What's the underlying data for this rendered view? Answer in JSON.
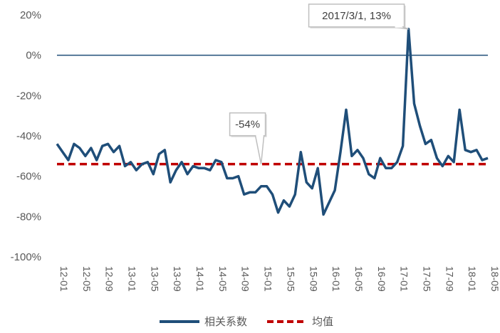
{
  "chart_data": {
    "type": "line",
    "y_ticks": [
      "20%",
      "0%",
      "-20%",
      "-40%",
      "-60%",
      "-80%",
      "-100%"
    ],
    "ylim": [
      -100,
      20
    ],
    "x_ticks": [
      "12-01",
      "12-05",
      "12-09",
      "13-01",
      "13-05",
      "13-09",
      "14-01",
      "14-05",
      "14-09",
      "15-01",
      "15-05",
      "15-09",
      "16-01",
      "16-05",
      "16-09",
      "17-01",
      "17-05",
      "17-09",
      "18-01",
      "18-05"
    ],
    "series": [
      {
        "name": "相关系数",
        "color": "#1f4e79",
        "values": [
          -44,
          -48,
          -52,
          -44,
          -46,
          -50,
          -46,
          -52,
          -45,
          -44,
          -48,
          -45,
          -55,
          -53,
          -57,
          -54,
          -53,
          -59,
          -49,
          -47,
          -63,
          -57,
          -53,
          -59,
          -55,
          -56,
          -56,
          -57,
          -52,
          -53,
          -61,
          -61,
          -60,
          -69,
          -68,
          -68,
          -65,
          -65,
          -69,
          -78,
          -72,
          -75,
          -69,
          -48,
          -63,
          -66,
          -56,
          -79,
          -73,
          -67,
          -48,
          -27,
          -50,
          -47,
          -51,
          -59,
          -61,
          -51,
          -56,
          -56,
          -53,
          -45,
          13,
          -24,
          -35,
          -44,
          -42,
          -51,
          -55,
          -50,
          -53,
          -27,
          -47,
          -48,
          -47,
          -52,
          -51
        ]
      },
      {
        "name": "均值",
        "color": "#c00000",
        "dashed": true,
        "value": -54
      }
    ],
    "annotations": [
      {
        "text": "2017/3/1, 13%",
        "index": 62,
        "value": 13
      },
      {
        "text": "-54%",
        "index": 36,
        "value": -54
      }
    ],
    "zero_line": true,
    "grid": false,
    "legend_position": "bottom"
  }
}
